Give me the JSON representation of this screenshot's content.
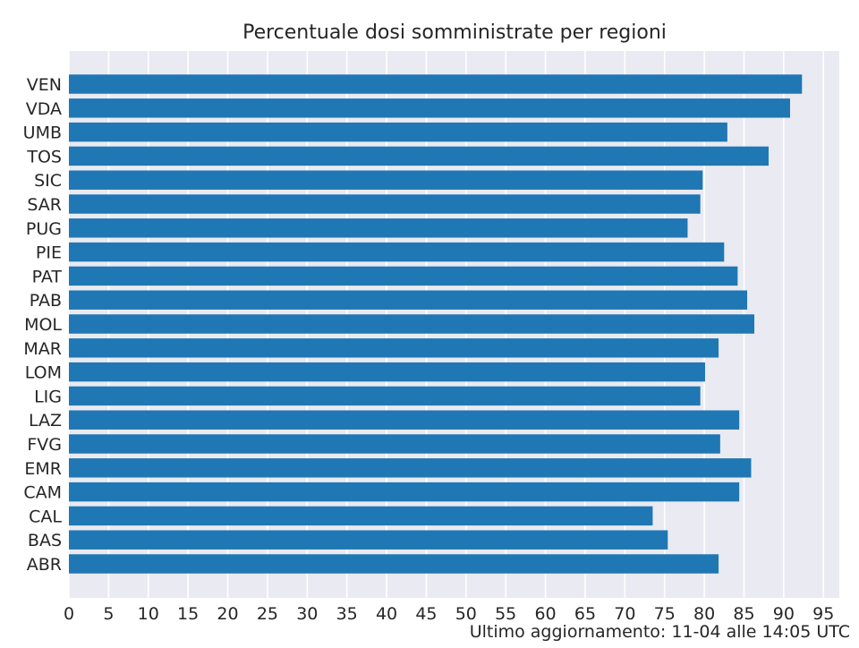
{
  "chart_data": {
    "type": "bar",
    "orientation": "horizontal",
    "title": "Percentuale dosi somministrate per regioni",
    "xlabel": "",
    "ylabel": "",
    "categories": [
      "ABR",
      "BAS",
      "CAL",
      "CAM",
      "EMR",
      "FVG",
      "LAZ",
      "LIG",
      "LOM",
      "MAR",
      "MOL",
      "PAB",
      "PAT",
      "PIE",
      "PUG",
      "SAR",
      "SIC",
      "TOS",
      "UMB",
      "VDA",
      "VEN"
    ],
    "values": [
      81.8,
      75.4,
      73.5,
      84.4,
      85.9,
      82.0,
      84.4,
      79.5,
      80.1,
      81.8,
      86.3,
      85.4,
      84.2,
      82.5,
      77.9,
      79.5,
      79.8,
      88.1,
      82.9,
      90.8,
      92.3
    ],
    "xlim": [
      0,
      97
    ],
    "xticks": [
      "0",
      "5",
      "10",
      "15",
      "20",
      "25",
      "30",
      "35",
      "40",
      "45",
      "50",
      "55",
      "60",
      "65",
      "70",
      "75",
      "80",
      "85",
      "90",
      "95"
    ],
    "grid": true,
    "bar_color": "#1f77b4",
    "background_color": "#eaeaf2",
    "grid_color": "#ffffff"
  },
  "footnote": "Ultimo aggiornamento: 11-04 alle 14:05 UTC"
}
